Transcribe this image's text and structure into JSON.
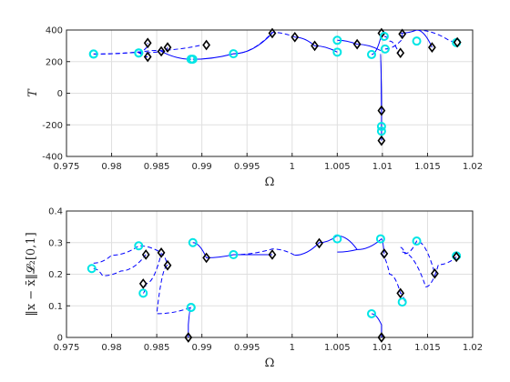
{
  "chart_data": [
    {
      "type": "line",
      "xlabel": "Ω",
      "ylabel": "T",
      "xlim": [
        0.975,
        1.02
      ],
      "ylim": [
        -400,
        400
      ],
      "xticks": [
        "0.975",
        "0.98",
        "0.985",
        "0.99",
        "0.995",
        "1",
        "1.005",
        "1.01",
        "1.015",
        "1.02"
      ],
      "yticks": [
        "-400",
        "-200",
        "0",
        "200",
        "400"
      ],
      "grid": true,
      "colors": {
        "curve": "#0000ff",
        "start_marker": "#00e5e5",
        "end_marker": "#000000"
      },
      "series": [
        {
          "style": "dashed",
          "points": [
            [
              0.978,
              248
            ],
            [
              0.983,
              260
            ],
            [
              0.9838,
              285
            ],
            [
              0.984,
              318
            ]
          ],
          "start": [
            0.978,
            248
          ],
          "end": [
            0.984,
            318
          ]
        },
        {
          "style": "dashed",
          "points": [
            [
              0.978,
              248
            ],
            [
              0.9845,
              270
            ],
            [
              0.99,
              305
            ]
          ],
          "start": [
            0.978,
            248
          ],
          "end": [
            0.9905,
            305
          ]
        },
        {
          "style": "dashed",
          "points": [
            [
              0.983,
              255
            ],
            [
              0.9835,
              230
            ],
            [
              0.984,
              230
            ]
          ],
          "start": [
            0.983,
            255
          ],
          "end": [
            0.984,
            230
          ]
        },
        {
          "style": "dashed",
          "points": [
            [
              0.983,
              255
            ],
            [
              0.986,
              268
            ],
            [
              0.9862,
              290
            ]
          ],
          "start": [
            0.983,
            255
          ],
          "end": [
            0.9862,
            290
          ]
        },
        {
          "style": "solid",
          "points": [
            [
              0.9888,
              215
            ],
            [
              0.9855,
              265
            ]
          ],
          "start": [
            0.9888,
            215
          ],
          "end": [
            0.9855,
            265
          ]
        },
        {
          "style": "solid",
          "points": [
            [
              0.989,
              215
            ],
            [
              0.9935,
              250
            ],
            [
              0.9978,
              380
            ]
          ],
          "start": [
            0.989,
            215
          ],
          "end": [
            0.9978,
            380
          ]
        },
        {
          "style": "dashed",
          "points": [
            [
              0.9935,
              250
            ],
            [
              0.9978,
              385
            ],
            [
              1.0003,
              355
            ]
          ],
          "start": [
            0.9935,
            250
          ],
          "end": [
            1.0003,
            355
          ]
        },
        {
          "style": "solid",
          "points": [
            [
              1.0003,
              355
            ],
            [
              1.0025,
              300
            ],
            [
              1.005,
              260
            ]
          ],
          "start": [
            1.005,
            260
          ],
          "end": [
            1.0025,
            300
          ]
        },
        {
          "style": "solid",
          "points": [
            [
              1.005,
              335
            ],
            [
              1.0072,
              310
            ],
            [
              1.0098,
              270
            ]
          ],
          "start": [
            1.005,
            335
          ],
          "end": [
            1.0072,
            310
          ]
        },
        {
          "style": "solid",
          "points": [
            [
              1.0098,
              250
            ],
            [
              1.0099,
              -100
            ],
            [
              1.0099,
              -300
            ]
          ],
          "start": [
            1.0099,
            -210
          ],
          "end": [
            1.0099,
            -300
          ]
        },
        {
          "style": "solid",
          "points": [
            [
              1.0098,
              250
            ],
            [
              1.0099,
              -110
            ]
          ],
          "start": [
            1.0099,
            -240
          ],
          "end": [
            1.0099,
            -110
          ]
        },
        {
          "style": "solid",
          "points": [
            [
              1.0088,
              245
            ],
            [
              1.0099,
              370
            ]
          ],
          "start": [
            1.0088,
            245
          ],
          "end": [
            1.0099,
            380
          ]
        },
        {
          "style": "dashed",
          "points": [
            [
              1.0102,
              360
            ],
            [
              1.0108,
              330
            ],
            [
              1.0118,
              255
            ]
          ],
          "start": [
            1.0102,
            360
          ],
          "end": [
            1.012,
            255
          ]
        },
        {
          "style": "dashed",
          "points": [
            [
              1.0103,
              280
            ],
            [
              1.012,
              330
            ],
            [
              1.0122,
              375
            ]
          ],
          "start": [
            1.0103,
            280
          ],
          "end": [
            1.0122,
            375
          ]
        },
        {
          "style": "solid",
          "points": [
            [
              1.012,
              380
            ],
            [
              1.0138,
              400
            ],
            [
              1.0155,
              290
            ]
          ],
          "start": [
            1.0138,
            330
          ],
          "end": [
            1.0155,
            290
          ]
        },
        {
          "style": "dashed",
          "points": [
            [
              1.0138,
              400
            ],
            [
              1.0175,
              330
            ],
            [
              1.0182,
              320
            ]
          ],
          "start": [
            1.0182,
            320
          ],
          "end": [
            1.0183,
            322
          ]
        }
      ]
    },
    {
      "type": "line",
      "xlabel": "Ω",
      "ylabel": "‖x − x̄‖𝓛₂[0,1]",
      "xlim": [
        0.975,
        1.02
      ],
      "ylim": [
        0,
        0.4
      ],
      "xticks": [
        "0.975",
        "0.98",
        "0.985",
        "0.99",
        "0.995",
        "1",
        "1.005",
        "1.01",
        "1.015",
        "1.02"
      ],
      "yticks": [
        "0",
        "0.1",
        "0.2",
        "0.3",
        "0.4"
      ],
      "grid": true,
      "colors": {
        "curve": "#0000ff",
        "start_marker": "#00e5e5",
        "end_marker": "#000000"
      },
      "series": [
        {
          "style": "dashed",
          "points": [
            [
              0.978,
              0.218
            ],
            [
              0.979,
              0.195
            ],
            [
              0.981,
              0.21
            ],
            [
              0.9838,
              0.262
            ]
          ],
          "start": [
            0.9778,
            0.218
          ],
          "end": [
            0.9838,
            0.262
          ]
        },
        {
          "style": "dashed",
          "points": [
            [
              0.978,
              0.235
            ],
            [
              0.98,
              0.26
            ],
            [
              0.983,
              0.29
            ],
            [
              0.9855,
              0.268
            ]
          ],
          "start": [
            0.983,
            0.29
          ],
          "end": [
            0.9855,
            0.268
          ]
        },
        {
          "style": "dashed",
          "points": [
            [
              0.9835,
              0.14
            ],
            [
              0.9838,
              0.17
            ],
            [
              0.9855,
              0.265
            ],
            [
              0.9862,
              0.228
            ]
          ],
          "start": [
            0.9835,
            0.14
          ],
          "end": [
            0.9835,
            0.17
          ]
        },
        {
          "style": "dashed",
          "points": [
            [
              0.9862,
              0.228
            ],
            [
              0.985,
              0.075
            ],
            [
              0.9888,
              0.095
            ]
          ],
          "start": [
            0.9888,
            0.095
          ],
          "end": [
            0.9862,
            0.228
          ]
        },
        {
          "style": "solid",
          "points": [
            [
              0.9888,
              0.095
            ],
            [
              0.9885,
              0.04
            ],
            [
              0.9885,
              0.0
            ]
          ],
          "start": [
            0.9888,
            0.095
          ],
          "end": [
            0.9885,
            0.0
          ]
        },
        {
          "style": "solid",
          "points": [
            [
              0.989,
              0.3
            ],
            [
              0.9905,
              0.252
            ],
            [
              0.9935,
              0.262
            ],
            [
              0.9978,
              0.262
            ]
          ],
          "start": [
            0.989,
            0.3
          ],
          "end": [
            0.9905,
            0.252
          ]
        },
        {
          "style": "dashed",
          "points": [
            [
              0.9935,
              0.262
            ],
            [
              0.9978,
              0.28
            ],
            [
              1.0003,
              0.26
            ]
          ],
          "start": [
            0.9935,
            0.262
          ],
          "end": [
            0.9978,
            0.262
          ]
        },
        {
          "style": "solid",
          "points": [
            [
              1.0003,
              0.26
            ],
            [
              1.003,
              0.3
            ],
            [
              1.005,
              0.322
            ],
            [
              1.0072,
              0.278
            ]
          ],
          "start": [
            1.005,
            0.312
          ],
          "end": [
            1.003,
            0.298
          ]
        },
        {
          "style": "solid",
          "points": [
            [
              1.005,
              0.27
            ],
            [
              1.0072,
              0.278
            ],
            [
              1.0099,
              0.312
            ],
            [
              1.0102,
              0.265
            ]
          ],
          "start": [
            1.0098,
            0.312
          ],
          "end": [
            1.0102,
            0.265
          ]
        },
        {
          "style": "solid",
          "points": [
            [
              1.0088,
              0.075
            ],
            [
              1.0099,
              0.04
            ],
            [
              1.0099,
              0.0
            ]
          ],
          "start": [
            1.0088,
            0.075
          ],
          "end": [
            1.0099,
            0.0
          ]
        },
        {
          "style": "dashed",
          "points": [
            [
              1.0098,
              0.265
            ],
            [
              1.0108,
              0.2
            ],
            [
              1.012,
              0.14
            ],
            [
              1.0125,
              0.112
            ]
          ],
          "start": [
            1.0122,
            0.112
          ],
          "end": [
            1.012,
            0.14
          ]
        },
        {
          "style": "dashed",
          "points": [
            [
              1.012,
              0.285
            ],
            [
              1.0125,
              0.265
            ],
            [
              1.0138,
              0.305
            ],
            [
              1.0158,
              0.202
            ]
          ],
          "start": [
            1.0138,
            0.305
          ],
          "end": [
            1.0158,
            0.202
          ]
        },
        {
          "style": "dashed",
          "points": [
            [
              1.0122,
              0.27
            ],
            [
              1.0148,
              0.16
            ],
            [
              1.0162,
              0.23
            ],
            [
              1.0182,
              0.255
            ]
          ],
          "start": [
            1.0182,
            0.258
          ],
          "end": [
            1.0182,
            0.255
          ]
        }
      ]
    }
  ]
}
